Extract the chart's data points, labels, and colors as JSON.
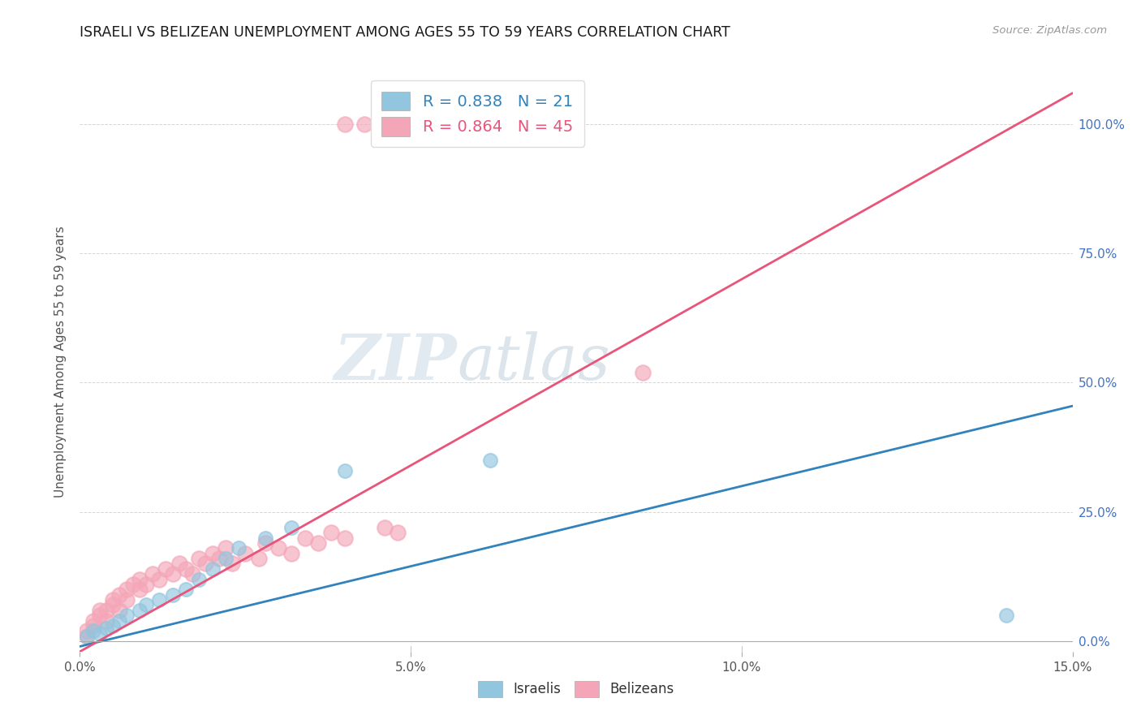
{
  "title": "ISRAELI VS BELIZEAN UNEMPLOYMENT AMONG AGES 55 TO 59 YEARS CORRELATION CHART",
  "source": "Source: ZipAtlas.com",
  "ylabel": "Unemployment Among Ages 55 to 59 years",
  "xlim": [
    0.0,
    0.15
  ],
  "ylim": [
    -0.02,
    1.1
  ],
  "plot_ylim": [
    0.0,
    1.1
  ],
  "xlabel_ticks": [
    0.0,
    0.05,
    0.1,
    0.15
  ],
  "xlabel_labels": [
    "0.0%",
    "5.0%",
    "10.0%",
    "15.0%"
  ],
  "ylabel_ticks": [
    0.0,
    0.25,
    0.5,
    0.75,
    1.0
  ],
  "ylabel_labels": [
    "0.0%",
    "25.0%",
    "50.0%",
    "75.0%",
    "100.0%"
  ],
  "israeli_color": "#92c5de",
  "belizean_color": "#f4a6b8",
  "israeli_line_color": "#3182bd",
  "belizean_line_color": "#e8547a",
  "israeli_R": 0.838,
  "israeli_N": 21,
  "belizean_R": 0.864,
  "belizean_N": 45,
  "watermark_zip": "ZIP",
  "watermark_atlas": "atlas",
  "background_color": "#ffffff",
  "grid_color": "#cccccc",
  "right_axis_color": "#4472c4",
  "isr_line_x0": 0.0,
  "isr_line_y0": -0.01,
  "isr_line_x1": 0.15,
  "isr_line_y1": 0.455,
  "bel_line_x0": 0.0,
  "bel_line_y0": -0.02,
  "bel_line_x1": 0.15,
  "bel_line_y1": 1.06,
  "israeli_scatter_x": [
    0.001,
    0.002,
    0.003,
    0.004,
    0.005,
    0.006,
    0.007,
    0.009,
    0.01,
    0.012,
    0.014,
    0.016,
    0.018,
    0.02,
    0.022,
    0.024,
    0.028,
    0.032,
    0.04,
    0.062,
    0.14
  ],
  "israeli_scatter_y": [
    0.01,
    0.02,
    0.015,
    0.025,
    0.03,
    0.04,
    0.05,
    0.06,
    0.07,
    0.08,
    0.09,
    0.1,
    0.12,
    0.14,
    0.16,
    0.18,
    0.2,
    0.22,
    0.33,
    0.35,
    0.05
  ],
  "belizean_scatter_x": [
    0.001,
    0.001,
    0.002,
    0.002,
    0.003,
    0.003,
    0.004,
    0.004,
    0.005,
    0.005,
    0.006,
    0.006,
    0.007,
    0.007,
    0.008,
    0.009,
    0.009,
    0.01,
    0.011,
    0.012,
    0.013,
    0.014,
    0.015,
    0.016,
    0.017,
    0.018,
    0.019,
    0.02,
    0.021,
    0.022,
    0.023,
    0.025,
    0.027,
    0.028,
    0.03,
    0.032,
    0.034,
    0.036,
    0.038,
    0.04,
    0.04,
    0.043,
    0.046,
    0.048,
    0.085
  ],
  "belizean_scatter_y": [
    0.01,
    0.02,
    0.03,
    0.04,
    0.05,
    0.06,
    0.04,
    0.06,
    0.07,
    0.08,
    0.06,
    0.09,
    0.08,
    0.1,
    0.11,
    0.1,
    0.12,
    0.11,
    0.13,
    0.12,
    0.14,
    0.13,
    0.15,
    0.14,
    0.13,
    0.16,
    0.15,
    0.17,
    0.16,
    0.18,
    0.15,
    0.17,
    0.16,
    0.19,
    0.18,
    0.17,
    0.2,
    0.19,
    0.21,
    0.2,
    1.0,
    1.0,
    0.22,
    0.21,
    0.52
  ]
}
